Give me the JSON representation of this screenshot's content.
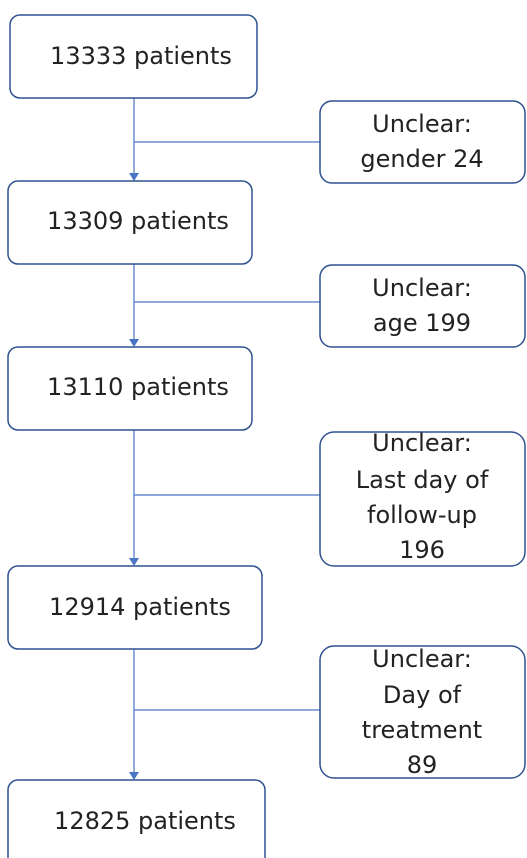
{
  "nodes": [
    {
      "label": "13333 patients"
    },
    {
      "label": "13309 patients"
    },
    {
      "label": "13110 patients"
    },
    {
      "label": "12914 patients"
    },
    {
      "label": "12825 patients"
    }
  ],
  "exclusions": [
    {
      "lines": [
        "Unclear:",
        "gender 24"
      ]
    },
    {
      "lines": [
        "Unclear:",
        "age 199"
      ]
    },
    {
      "lines": [
        "Unclear:",
        "Last day of",
        "follow-up",
        "196"
      ]
    },
    {
      "lines": [
        "Unclear:",
        "Day of",
        "treatment",
        "89"
      ]
    }
  ]
}
